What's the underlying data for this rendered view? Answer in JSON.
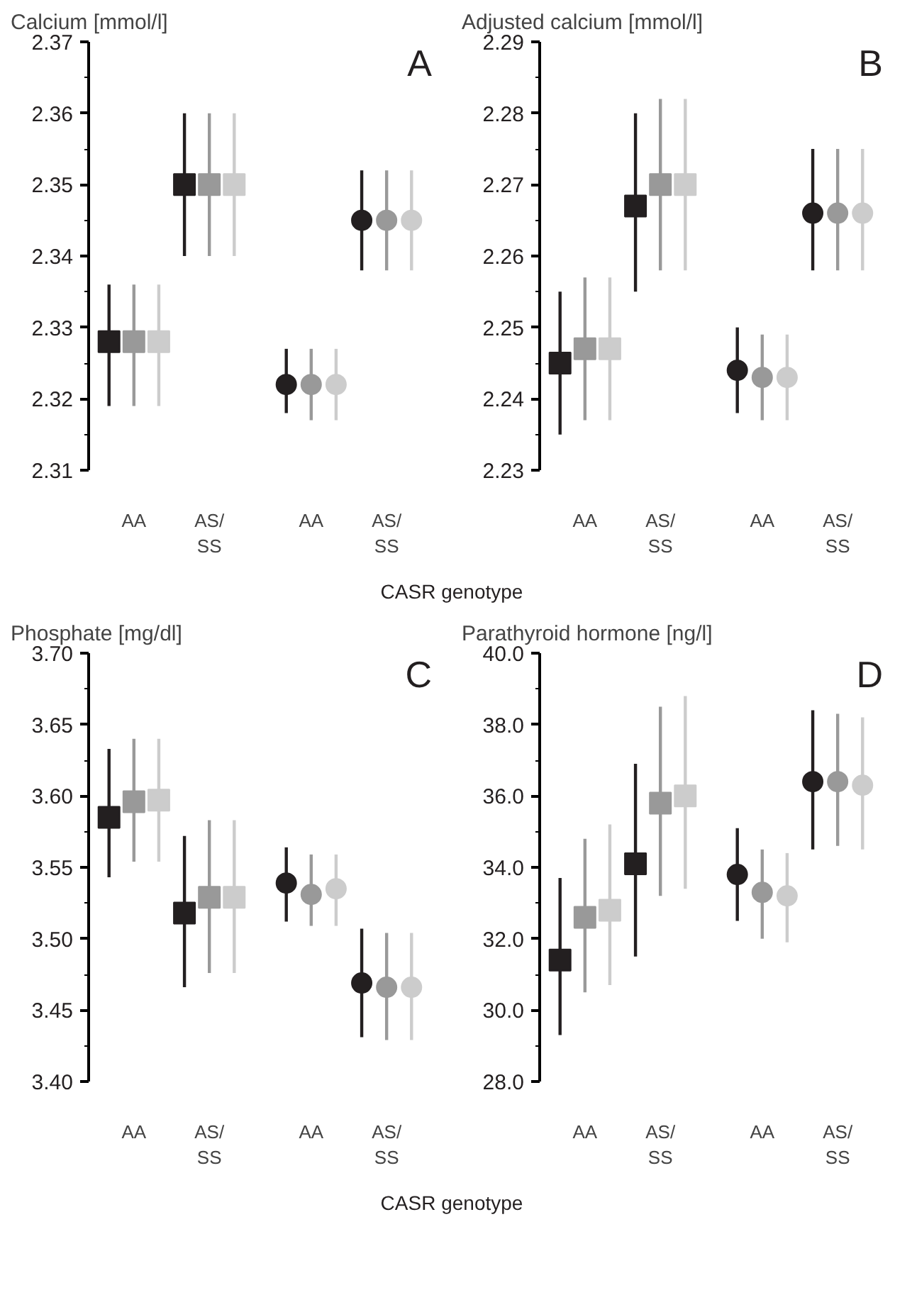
{
  "chart_data": [
    {
      "type": "scatter",
      "title": "Calcium [mmol/l]",
      "xlabel": "CASR genotype",
      "annotations": [
        "A"
      ],
      "categories": [
        "AA",
        "AS/\nSS",
        "AA",
        "AS/\nSS"
      ],
      "ylim": [
        2.31,
        2.37
      ],
      "yticks": [
        2.31,
        {
          "value": 2.315,
          "label": null
        },
        2.32,
        {
          "value": 2.325,
          "label": null
        },
        2.33,
        {
          "value": 2.335,
          "label": null
        },
        2.34,
        {
          "value": 2.345,
          "label": null
        },
        2.35,
        {
          "value": 2.355,
          "label": null
        },
        2.36,
        {
          "value": 2.365,
          "label": null
        },
        2.37
      ],
      "series": [
        {
          "color": "#231f20",
          "marker": "square",
          "values": [
            2.328,
            2.35,
            null,
            null
          ],
          "errors": [
            [
              2.319,
              2.336
            ],
            [
              2.34,
              2.36
            ],
            null,
            null
          ]
        },
        {
          "color": "#999999",
          "marker": "square",
          "values": [
            2.328,
            2.35,
            null,
            null
          ],
          "errors": [
            [
              2.319,
              2.336
            ],
            [
              2.34,
              2.36
            ],
            null,
            null
          ]
        },
        {
          "color": "#cccccc",
          "marker": "square",
          "values": [
            2.328,
            2.35,
            null,
            null
          ],
          "errors": [
            [
              2.319,
              2.336
            ],
            [
              2.34,
              2.36
            ],
            null,
            null
          ]
        },
        {
          "color": "#231f20",
          "marker": "circle",
          "values": [
            null,
            null,
            2.322,
            2.345
          ],
          "errors": [
            null,
            null,
            [
              2.318,
              2.327
            ],
            [
              2.338,
              2.352
            ]
          ]
        },
        {
          "color": "#999999",
          "marker": "circle",
          "values": [
            null,
            null,
            2.322,
            2.345
          ],
          "errors": [
            null,
            null,
            [
              2.317,
              2.327
            ],
            [
              2.338,
              2.352
            ]
          ]
        },
        {
          "color": "#cccccc",
          "marker": "circle",
          "values": [
            null,
            null,
            2.322,
            2.345
          ],
          "errors": [
            null,
            null,
            [
              2.317,
              2.327
            ],
            [
              2.338,
              2.352
            ]
          ]
        }
      ]
    },
    {
      "type": "scatter",
      "title": "Adjusted calcium [mmol/l]",
      "annotations": [
        "B"
      ],
      "categories": [
        "AA",
        "AS/\nSS",
        "AA",
        "AS/\nSS"
      ],
      "ylim": [
        2.23,
        2.29
      ],
      "yticks": [
        2.23,
        {
          "value": 2.235,
          "label": null
        },
        2.24,
        {
          "value": 2.245,
          "label": null
        },
        2.25,
        {
          "value": 2.255,
          "label": null
        },
        2.26,
        {
          "value": 2.265,
          "label": null
        },
        2.27,
        {
          "value": 2.275,
          "label": null
        },
        2.28,
        {
          "value": 2.285,
          "label": null
        },
        2.29
      ],
      "series": [
        {
          "color": "#231f20",
          "marker": "square",
          "values": [
            2.245,
            2.267,
            null,
            null
          ],
          "errors": [
            [
              2.235,
              2.255
            ],
            [
              2.255,
              2.28
            ],
            null,
            null
          ]
        },
        {
          "color": "#999999",
          "marker": "square",
          "values": [
            2.247,
            2.27,
            null,
            null
          ],
          "errors": [
            [
              2.237,
              2.257
            ],
            [
              2.258,
              2.282
            ],
            null,
            null
          ]
        },
        {
          "color": "#cccccc",
          "marker": "square",
          "values": [
            2.247,
            2.27,
            null,
            null
          ],
          "errors": [
            [
              2.237,
              2.257
            ],
            [
              2.258,
              2.282
            ],
            null,
            null
          ]
        },
        {
          "color": "#231f20",
          "marker": "circle",
          "values": [
            null,
            null,
            2.244,
            2.266
          ],
          "errors": [
            null,
            null,
            [
              2.238,
              2.25
            ],
            [
              2.258,
              2.275
            ]
          ]
        },
        {
          "color": "#999999",
          "marker": "circle",
          "values": [
            null,
            null,
            2.243,
            2.266
          ],
          "errors": [
            null,
            null,
            [
              2.237,
              2.249
            ],
            [
              2.258,
              2.275
            ]
          ]
        },
        {
          "color": "#cccccc",
          "marker": "circle",
          "values": [
            null,
            null,
            2.243,
            2.266
          ],
          "errors": [
            null,
            null,
            [
              2.237,
              2.249
            ],
            [
              2.258,
              2.275
            ]
          ]
        }
      ]
    },
    {
      "type": "scatter",
      "title": "Phosphate [mg/dl]",
      "xlabel": "CASR genotype",
      "annotations": [
        "C"
      ],
      "categories": [
        "AA",
        "AS/\nSS",
        "AA",
        "AS/\nSS"
      ],
      "ylim": [
        3.4,
        3.7
      ],
      "yticks": [
        {
          "value": 3.4,
          "label": "3.40"
        },
        {
          "value": 3.425,
          "label": null
        },
        3.45,
        {
          "value": 3.475,
          "label": null
        },
        {
          "value": 3.5,
          "label": "3.50"
        },
        {
          "value": 3.525,
          "label": null
        },
        3.55,
        {
          "value": 3.575,
          "label": null
        },
        {
          "value": 3.6,
          "label": "3.60"
        },
        {
          "value": 3.625,
          "label": null
        },
        3.65,
        {
          "value": 3.675,
          "label": null
        },
        {
          "value": 3.7,
          "label": "3.70"
        }
      ],
      "series": [
        {
          "color": "#231f20",
          "marker": "square",
          "values": [
            3.585,
            3.518,
            null,
            null
          ],
          "errors": [
            [
              3.543,
              3.633
            ],
            [
              3.466,
              3.572
            ],
            null,
            null
          ]
        },
        {
          "color": "#999999",
          "marker": "square",
          "values": [
            3.596,
            3.529,
            null,
            null
          ],
          "errors": [
            [
              3.554,
              3.64
            ],
            [
              3.476,
              3.583
            ],
            null,
            null
          ]
        },
        {
          "color": "#cccccc",
          "marker": "square",
          "values": [
            3.597,
            3.529,
            null,
            null
          ],
          "errors": [
            [
              3.554,
              3.64
            ],
            [
              3.476,
              3.583
            ],
            null,
            null
          ]
        },
        {
          "color": "#231f20",
          "marker": "circle",
          "values": [
            null,
            null,
            3.539,
            3.469
          ],
          "errors": [
            null,
            null,
            [
              3.512,
              3.564
            ],
            [
              3.431,
              3.507
            ]
          ]
        },
        {
          "color": "#999999",
          "marker": "circle",
          "values": [
            null,
            null,
            3.531,
            3.466
          ],
          "errors": [
            null,
            null,
            [
              3.509,
              3.559
            ],
            [
              3.429,
              3.504
            ]
          ]
        },
        {
          "color": "#cccccc",
          "marker": "circle",
          "values": [
            null,
            null,
            3.535,
            3.466
          ],
          "errors": [
            null,
            null,
            [
              3.509,
              3.559
            ],
            [
              3.429,
              3.504
            ]
          ]
        }
      ]
    },
    {
      "type": "scatter",
      "title": "Parathyroid hormone [ng/l]",
      "annotations": [
        "D"
      ],
      "categories": [
        "AA",
        "AS/\nSS",
        "AA",
        "AS/\nSS"
      ],
      "ylim": [
        28,
        40
      ],
      "yticks": [
        {
          "value": 28,
          "label": "28.0"
        },
        {
          "value": 29,
          "label": null
        },
        {
          "value": 30,
          "label": "30.0"
        },
        {
          "value": 31,
          "label": null
        },
        {
          "value": 32,
          "label": "32.0"
        },
        {
          "value": 33,
          "label": null
        },
        {
          "value": 34,
          "label": "34.0"
        },
        {
          "value": 35,
          "label": null
        },
        {
          "value": 36,
          "label": "36.0"
        },
        {
          "value": 37,
          "label": null
        },
        {
          "value": 38,
          "label": "38.0"
        },
        {
          "value": 39,
          "label": null
        },
        {
          "value": 40,
          "label": "40.0"
        }
      ],
      "series": [
        {
          "color": "#231f20",
          "marker": "square",
          "values": [
            31.4,
            34.1,
            null,
            null
          ],
          "errors": [
            [
              29.3,
              33.7
            ],
            [
              31.5,
              36.9
            ],
            null,
            null
          ]
        },
        {
          "color": "#999999",
          "marker": "square",
          "values": [
            32.6,
            35.8,
            null,
            null
          ],
          "errors": [
            [
              30.5,
              34.8
            ],
            [
              33.2,
              38.5
            ],
            null,
            null
          ]
        },
        {
          "color": "#cccccc",
          "marker": "square",
          "values": [
            32.8,
            36.0,
            null,
            null
          ],
          "errors": [
            [
              30.7,
              35.2
            ],
            [
              33.4,
              38.8
            ],
            null,
            null
          ]
        },
        {
          "color": "#231f20",
          "marker": "circle",
          "values": [
            null,
            null,
            33.8,
            36.4
          ],
          "errors": [
            null,
            null,
            [
              32.5,
              35.1
            ],
            [
              34.5,
              38.4
            ]
          ]
        },
        {
          "color": "#999999",
          "marker": "circle",
          "values": [
            null,
            null,
            33.3,
            36.4
          ],
          "errors": [
            null,
            null,
            [
              32.0,
              34.5
            ],
            [
              34.6,
              38.3
            ]
          ]
        },
        {
          "color": "#cccccc",
          "marker": "circle",
          "values": [
            null,
            null,
            33.2,
            36.3
          ],
          "errors": [
            null,
            null,
            [
              31.9,
              34.4
            ],
            [
              34.5,
              38.2
            ]
          ]
        }
      ]
    }
  ]
}
